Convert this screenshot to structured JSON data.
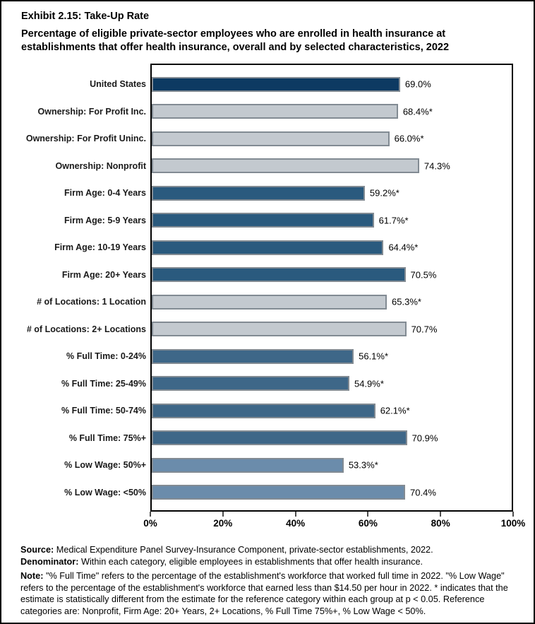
{
  "chart_data": {
    "type": "bar",
    "orientation": "horizontal",
    "title": "Exhibit 2.15: Take-Up Rate",
    "subtitle": "Percentage of eligible private-sector employees who are enrolled in health insurance at establishments that offer health insurance, overall and by selected characteristics, 2022",
    "xlabel": "",
    "ylabel": "",
    "xlim": [
      0,
      100
    ],
    "x_ticks": [
      "0%",
      "20%",
      "40%",
      "60%",
      "80%",
      "100%"
    ],
    "x_tick_values": [
      0,
      20,
      40,
      60,
      80,
      100
    ],
    "grid": false,
    "legend": "none",
    "colors": {
      "navy": "#0d3a62",
      "gray": "#c3c9cf",
      "steel_dark": "#2a5a7e",
      "steel_medium": "#3e6788",
      "steel_light": "#6b8cab",
      "bar_border": "#828b93"
    },
    "rows": [
      {
        "category": "United States",
        "value": 69.0,
        "label": "69.0%",
        "color": "navy"
      },
      {
        "category": "Ownership: For Profit Inc.",
        "value": 68.4,
        "label": "68.4%*",
        "color": "gray"
      },
      {
        "category": "Ownership: For Profit Uninc.",
        "value": 66.0,
        "label": "66.0%*",
        "color": "gray"
      },
      {
        "category": "Ownership: Nonprofit",
        "value": 74.3,
        "label": "74.3%",
        "color": "gray"
      },
      {
        "category": "Firm Age: 0-4 Years",
        "value": 59.2,
        "label": "59.2%*",
        "color": "steel_dark"
      },
      {
        "category": "Firm Age: 5-9 Years",
        "value": 61.7,
        "label": "61.7%*",
        "color": "steel_dark"
      },
      {
        "category": "Firm Age: 10-19 Years",
        "value": 64.4,
        "label": "64.4%*",
        "color": "steel_dark"
      },
      {
        "category": "Firm Age: 20+ Years",
        "value": 70.5,
        "label": "70.5%",
        "color": "steel_dark"
      },
      {
        "category": "# of Locations: 1 Location",
        "value": 65.3,
        "label": "65.3%*",
        "color": "gray"
      },
      {
        "category": "# of Locations: 2+ Locations",
        "value": 70.7,
        "label": "70.7%",
        "color": "gray"
      },
      {
        "category": "% Full Time: 0-24%",
        "value": 56.1,
        "label": "56.1%*",
        "color": "steel_medium"
      },
      {
        "category": "% Full Time: 25-49%",
        "value": 54.9,
        "label": "54.9%*",
        "color": "steel_medium"
      },
      {
        "category": "% Full Time: 50-74%",
        "value": 62.1,
        "label": "62.1%*",
        "color": "steel_medium"
      },
      {
        "category": "% Full Time: 75%+",
        "value": 70.9,
        "label": "70.9%",
        "color": "steel_medium"
      },
      {
        "category": "% Low Wage: 50%+",
        "value": 53.3,
        "label": "53.3%*",
        "color": "steel_light"
      },
      {
        "category": "% Low Wage: <50%",
        "value": 70.4,
        "label": "70.4%",
        "color": "steel_light"
      }
    ]
  },
  "footer": {
    "source_label": "Source:",
    "source_text": " Medical Expenditure Panel Survey-Insurance Component, private-sector establishments, 2022.",
    "denominator_label": "Denominator:",
    "denominator_text": " Within each category, eligible employees in establishments that offer health insurance.",
    "note_label": "Note:",
    "note_text": " \"% Full Time\" refers to the percentage of the establishment's workforce that worked full time in 2022. \"% Low Wage\" refers to the percentage of the establishment's workforce that earned less than $14.50 per hour in 2022. * indicates that the estimate is statistically different from the estimate for the reference category within each group at p < 0.05.  Reference categories are: Nonprofit, Firm Age: 20+ Years, 2+ Locations, % Full Time 75%+, % Low Wage < 50%."
  }
}
